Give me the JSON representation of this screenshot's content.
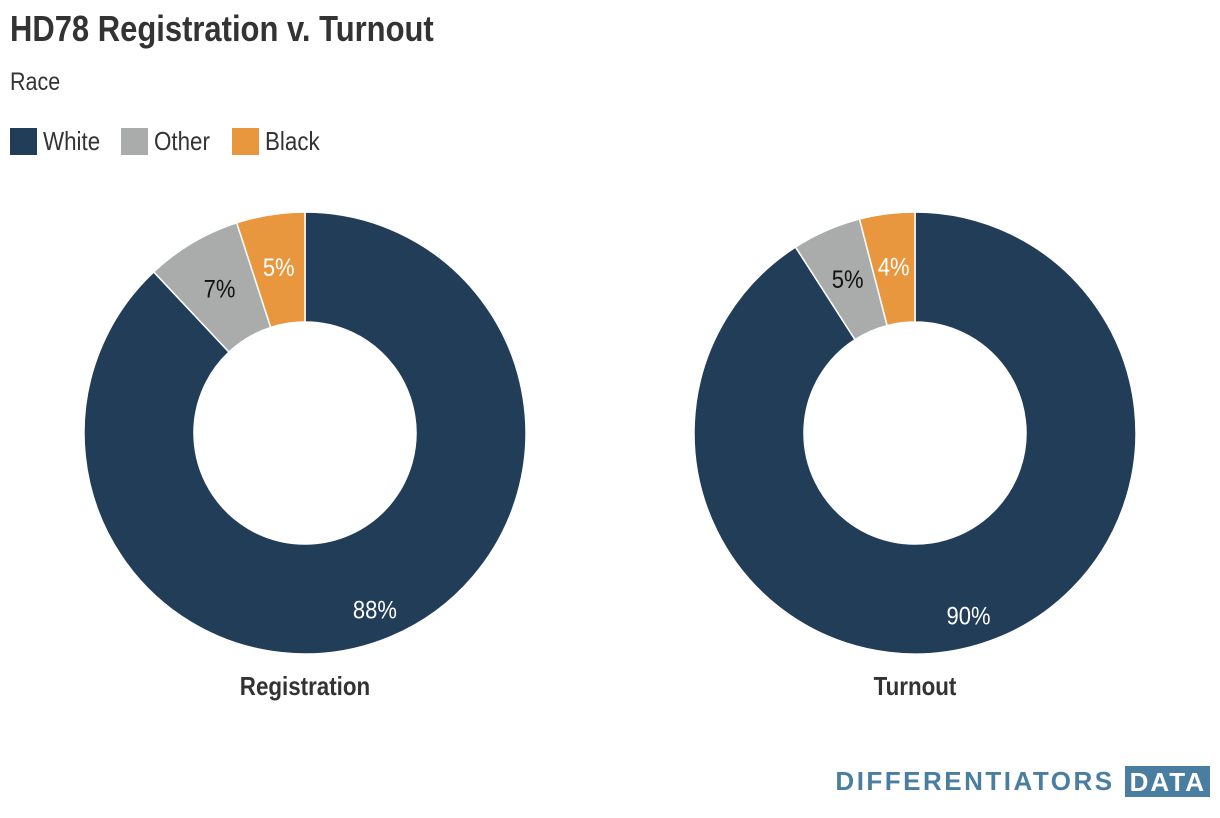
{
  "header": {
    "title": "HD78 Registration v. Turnout",
    "subtitle": "Race"
  },
  "legend": [
    {
      "label": "White",
      "color": "#223d58"
    },
    {
      "label": "Other",
      "color": "#a9acab"
    },
    {
      "label": "Black",
      "color": "#e8973f"
    }
  ],
  "chart_data": [
    {
      "type": "pie",
      "title": "Registration",
      "categories": [
        "White",
        "Other",
        "Black"
      ],
      "values": [
        88,
        7,
        5
      ],
      "labels": [
        "88%",
        "7%",
        "5%"
      ]
    },
    {
      "type": "pie",
      "title": "Turnout",
      "categories": [
        "White",
        "Other",
        "Black"
      ],
      "values": [
        90,
        5,
        4
      ],
      "labels": [
        "90%",
        "5%",
        "4%"
      ]
    }
  ],
  "logo": {
    "text": "DIFFERENTIATORS",
    "badge": "DATA"
  }
}
